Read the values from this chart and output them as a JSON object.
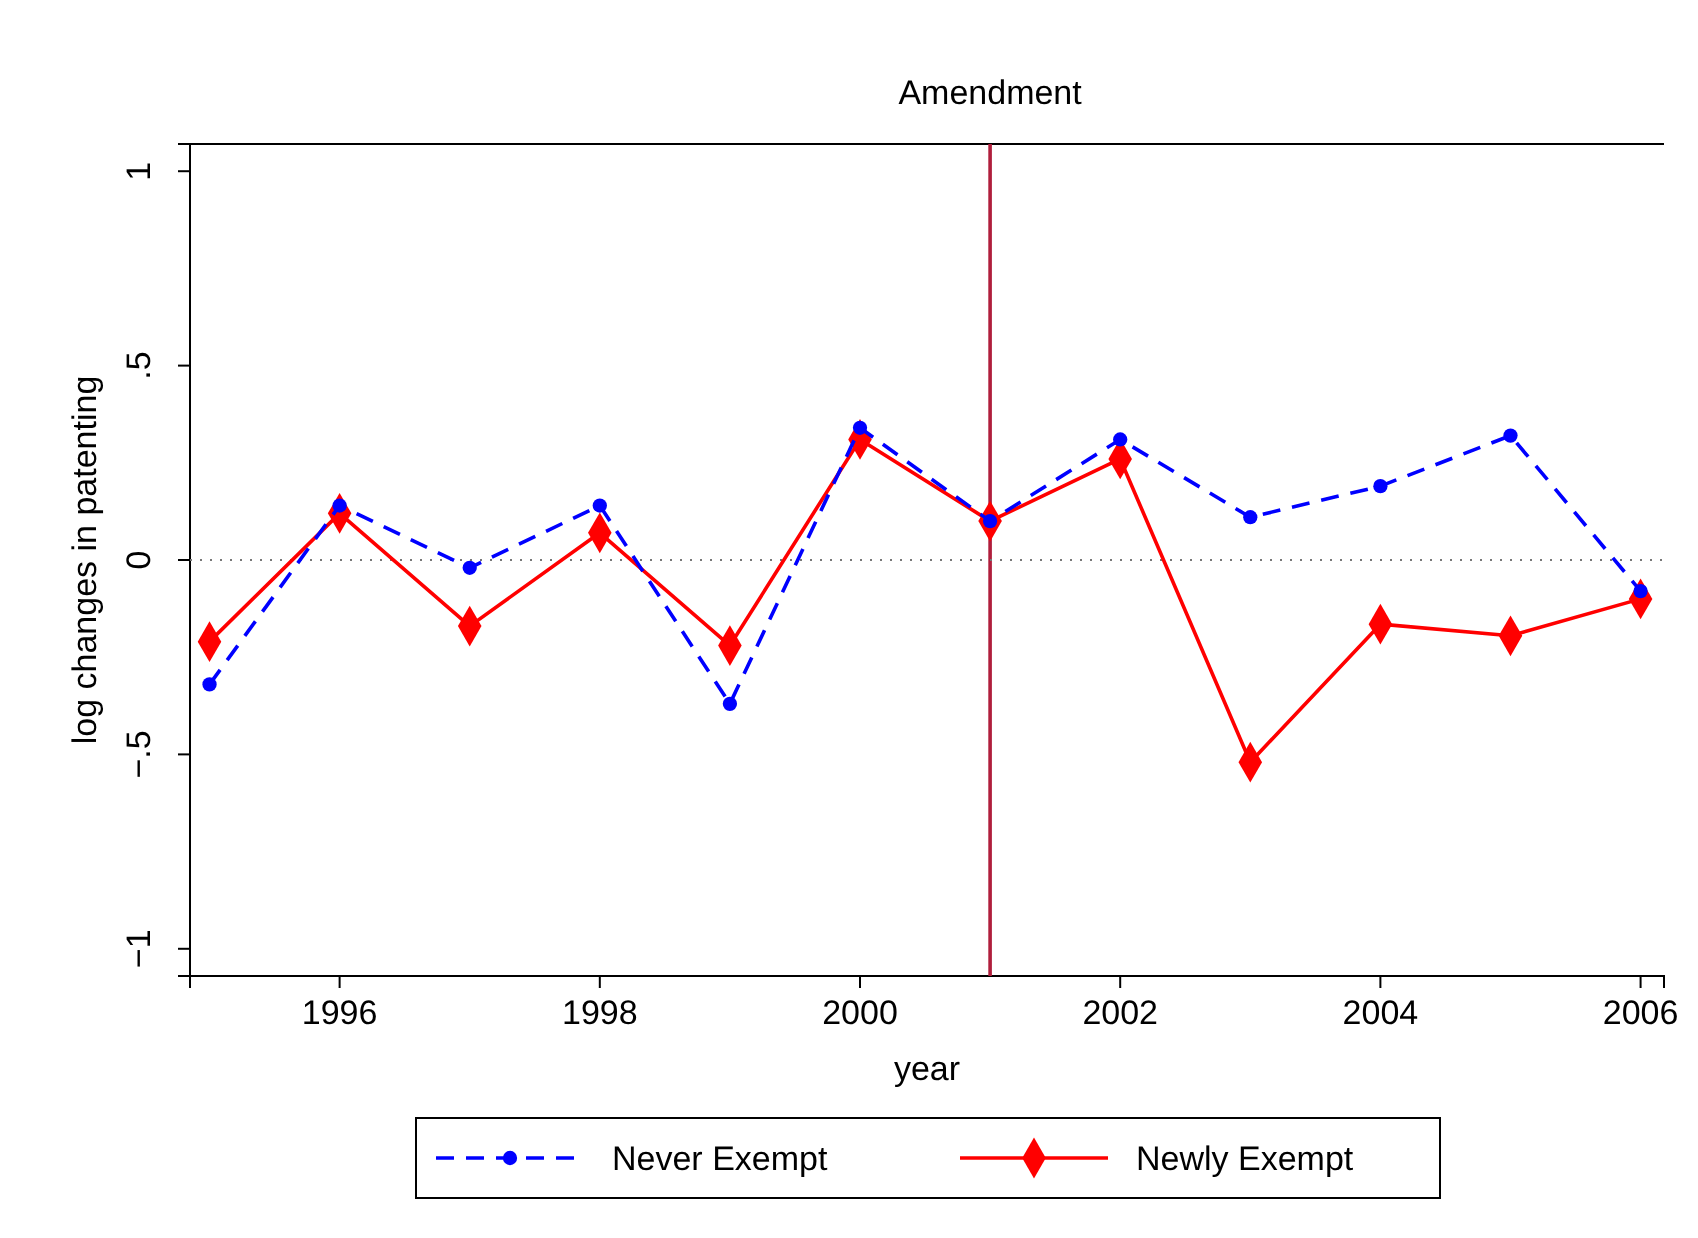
{
  "chart_data": {
    "type": "line",
    "xlabel": "year",
    "ylabel": "log changes in patenting",
    "x": [
      1995,
      1996,
      1997,
      1998,
      1999,
      2000,
      2001,
      2002,
      2003,
      2004,
      2005,
      2006
    ],
    "series": [
      {
        "name": "Never Exempt",
        "color": "#0000ff",
        "line_style": "dashed",
        "marker": "circle",
        "values": [
          -0.32,
          0.14,
          -0.02,
          0.14,
          -0.37,
          0.34,
          0.1,
          0.31,
          0.11,
          0.19,
          0.32,
          -0.08
        ]
      },
      {
        "name": "Newly Exempt",
        "color": "#ff0000",
        "line_style": "solid",
        "marker": "diamond",
        "values": [
          -0.21,
          0.12,
          -0.17,
          0.07,
          -0.22,
          0.31,
          0.1,
          0.26,
          -0.52,
          -0.165,
          -0.195,
          -0.1
        ]
      }
    ],
    "xlim": [
      1994.85,
      2006.18
    ],
    "xticks": [
      1996,
      1998,
      2000,
      2002,
      2004,
      2006
    ],
    "ylim": [
      -1.07,
      1.07
    ],
    "yticks": [
      {
        "value": -1,
        "label": "−1"
      },
      {
        "value": -0.5,
        "label": "−.5"
      },
      {
        "value": 0,
        "label": "0"
      },
      {
        "value": 0.5,
        "label": ".5"
      },
      {
        "value": 1,
        "label": "1"
      }
    ],
    "ref_lines": [
      {
        "axis": "x",
        "value": 2001,
        "label": "Amendment",
        "color": "#b01e3c",
        "line_style": "solid"
      },
      {
        "axis": "y",
        "value": 0,
        "color": "#777777",
        "line_style": "dotted"
      }
    ],
    "grid": false,
    "legend": "bottom"
  }
}
